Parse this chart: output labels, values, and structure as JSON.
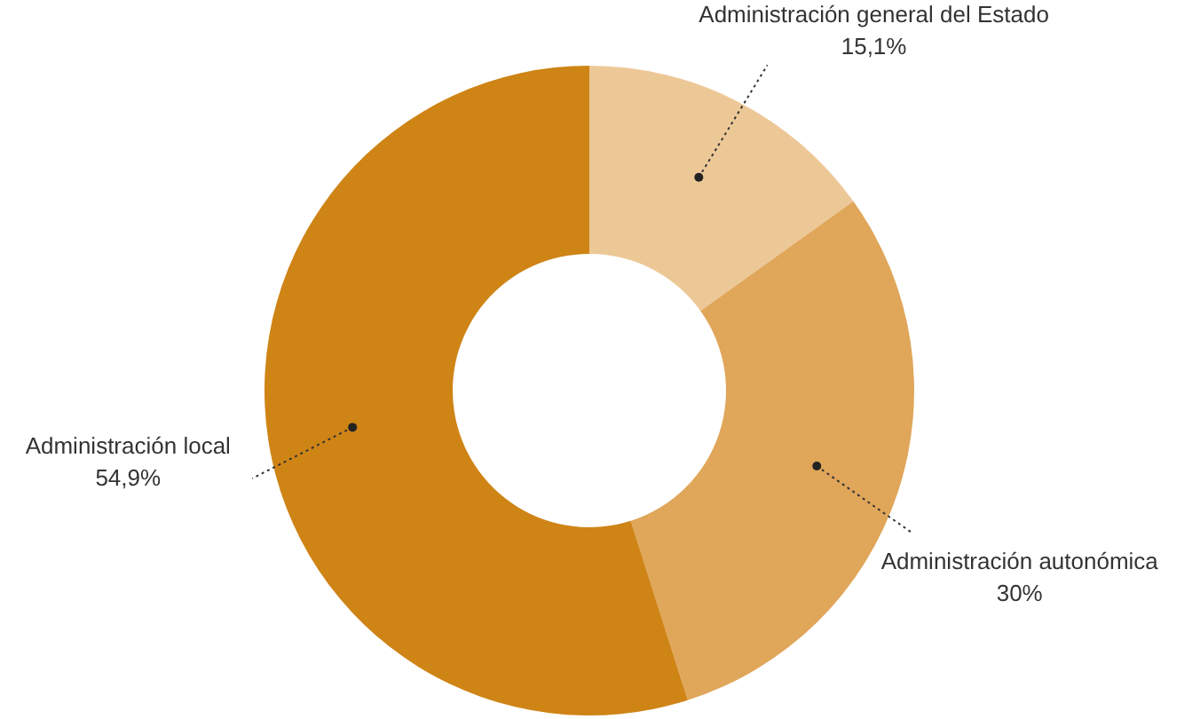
{
  "chart_data": {
    "type": "donut",
    "categories": [
      "Administración general del Estado",
      "Administración autonómica",
      "Administración local"
    ],
    "values": [
      15.1,
      30,
      54.9
    ],
    "colors": [
      "#edc897",
      "#e0a65a",
      "#cf8416"
    ],
    "value_labels": [
      "15,1%",
      "30%",
      "54,9%"
    ]
  }
}
